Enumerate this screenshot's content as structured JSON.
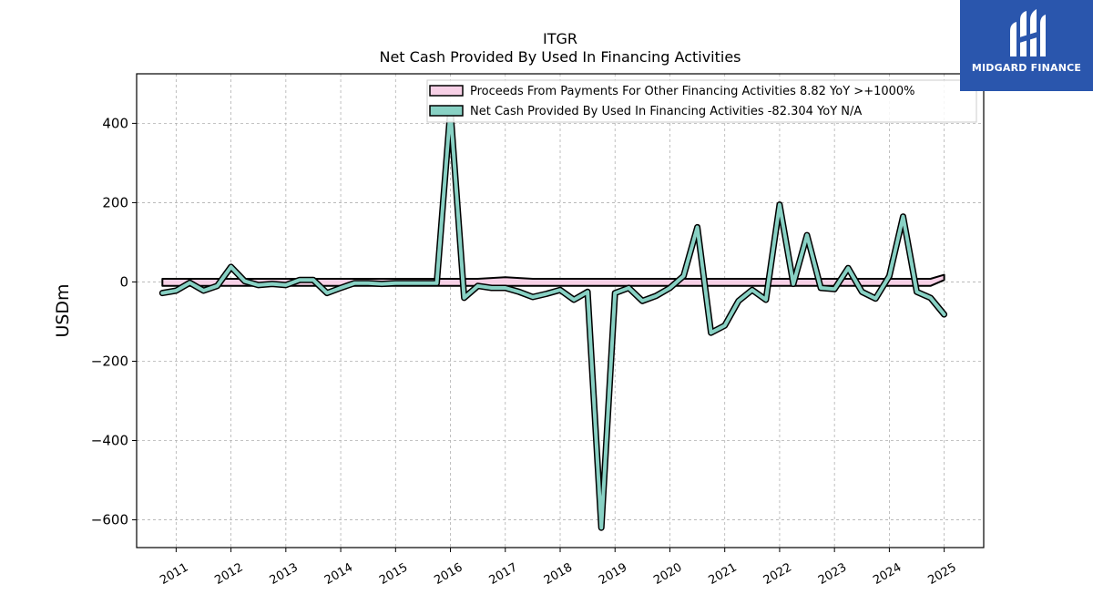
{
  "chart_data": {
    "type": "line",
    "title": "ITGR",
    "subtitle": "Net Cash Provided By Used In Financing Activities",
    "ylabel": "USDm",
    "xlabel": "",
    "ylim": [
      -670,
      525
    ],
    "xlim": [
      2010.28,
      2025.72
    ],
    "yticks": [
      400,
      200,
      0,
      -200,
      -400,
      -600
    ],
    "ytick_labels": [
      "400",
      "200",
      "0",
      "−200",
      "−400",
      "−600"
    ],
    "xticks": [
      2011,
      2012,
      2013,
      2014,
      2015,
      2016,
      2017,
      2018,
      2019,
      2020,
      2021,
      2022,
      2023,
      2024,
      2025
    ],
    "xtick_labels": [
      "2011",
      "2012",
      "2013",
      "2014",
      "2015",
      "2016",
      "2017",
      "2018",
      "2019",
      "2020",
      "2021",
      "2022",
      "2023",
      "2024",
      "2025"
    ],
    "grid": true,
    "legend_position": "top-right",
    "series": [
      {
        "name": "Proceeds From Payments For Other Financing Activities",
        "legend_label": "Proceeds From Payments For Other Financing Activities  8.82 YoY >+1000%",
        "color": "#f7d0e6",
        "kind": "area",
        "x": [
          2010.75,
          2011.0,
          2011.25,
          2011.5,
          2011.75,
          2012.0,
          2012.25,
          2012.5,
          2012.75,
          2013.0,
          2013.25,
          2013.5,
          2013.75,
          2014.0,
          2014.25,
          2014.5,
          2014.75,
          2015.0,
          2015.25,
          2015.5,
          2015.75,
          2016.0,
          2016.25,
          2016.5,
          2016.75,
          2017.0,
          2017.25,
          2017.5,
          2017.75,
          2018.0,
          2018.25,
          2018.5,
          2018.75,
          2019.0,
          2019.25,
          2019.5,
          2019.75,
          2020.0,
          2020.25,
          2020.5,
          2020.75,
          2021.0,
          2021.25,
          2021.5,
          2021.75,
          2022.0,
          2022.25,
          2022.5,
          2022.75,
          2023.0,
          2023.25,
          2023.5,
          2023.75,
          2024.0,
          2024.25,
          2024.5,
          2024.75,
          2025.0
        ],
        "upper": [
          8,
          8,
          8,
          8,
          8,
          8,
          8,
          8,
          8,
          8,
          8,
          8,
          8,
          8,
          8,
          8,
          8,
          8,
          8,
          8,
          8,
          8,
          8,
          8,
          10,
          12,
          10,
          8,
          8,
          8,
          8,
          8,
          8,
          8,
          8,
          8,
          8,
          8,
          8,
          8,
          8,
          8,
          8,
          8,
          8,
          8,
          8,
          8,
          8,
          8,
          8,
          8,
          8,
          8,
          8,
          8,
          8,
          18
        ],
        "lower": [
          -10,
          -10,
          -10,
          -10,
          -10,
          -10,
          -10,
          -10,
          -10,
          -10,
          -10,
          -10,
          -10,
          -10,
          -10,
          -10,
          -10,
          -10,
          -10,
          -10,
          -10,
          -10,
          -10,
          -10,
          -10,
          -10,
          -10,
          -10,
          -10,
          -10,
          -10,
          -10,
          -10,
          -10,
          -10,
          -10,
          -10,
          -10,
          -10,
          -10,
          -10,
          -10,
          -10,
          -10,
          -10,
          -10,
          -10,
          -10,
          -10,
          -10,
          -10,
          -10,
          -10,
          -10,
          -10,
          -10,
          -10,
          5
        ]
      },
      {
        "name": "Net Cash Provided By Used In Financing Activities",
        "legend_label": "Net Cash Provided By Used In Financing Activities  -82.304 YoY N/A",
        "color": "#88d1c4",
        "kind": "line",
        "x": [
          2010.75,
          2011.0,
          2011.25,
          2011.5,
          2011.75,
          2012.0,
          2012.25,
          2012.5,
          2012.75,
          2013.0,
          2013.25,
          2013.5,
          2013.75,
          2014.0,
          2014.25,
          2014.5,
          2014.75,
          2015.0,
          2015.25,
          2015.5,
          2015.75,
          2016.0,
          2016.25,
          2016.5,
          2016.75,
          2017.0,
          2017.25,
          2017.5,
          2017.75,
          2018.0,
          2018.25,
          2018.5,
          2018.75,
          2019.0,
          2019.25,
          2019.5,
          2019.75,
          2020.0,
          2020.25,
          2020.5,
          2020.75,
          2021.0,
          2021.25,
          2021.5,
          2021.75,
          2022.0,
          2022.25,
          2022.5,
          2022.75,
          2023.0,
          2023.25,
          2023.5,
          2023.75,
          2024.0,
          2024.25,
          2024.5,
          2024.75,
          2025.0
        ],
        "values": [
          -28,
          -22,
          -2,
          -22,
          -10,
          38,
          2,
          -8,
          -5,
          -8,
          5,
          5,
          -28,
          -15,
          -3,
          -3,
          -5,
          -3,
          -3,
          -3,
          -3,
          435,
          -40,
          -10,
          -15,
          -15,
          -25,
          -38,
          -30,
          -20,
          -45,
          -25,
          -620,
          -28,
          -15,
          -48,
          -35,
          -15,
          15,
          138,
          -128,
          -110,
          -48,
          -20,
          -45,
          195,
          -5,
          118,
          -15,
          -18,
          35,
          -25,
          -42,
          15,
          165,
          -25,
          -40,
          -82
        ]
      }
    ]
  },
  "logo": {
    "text": "MIDGARD FINANCE"
  }
}
